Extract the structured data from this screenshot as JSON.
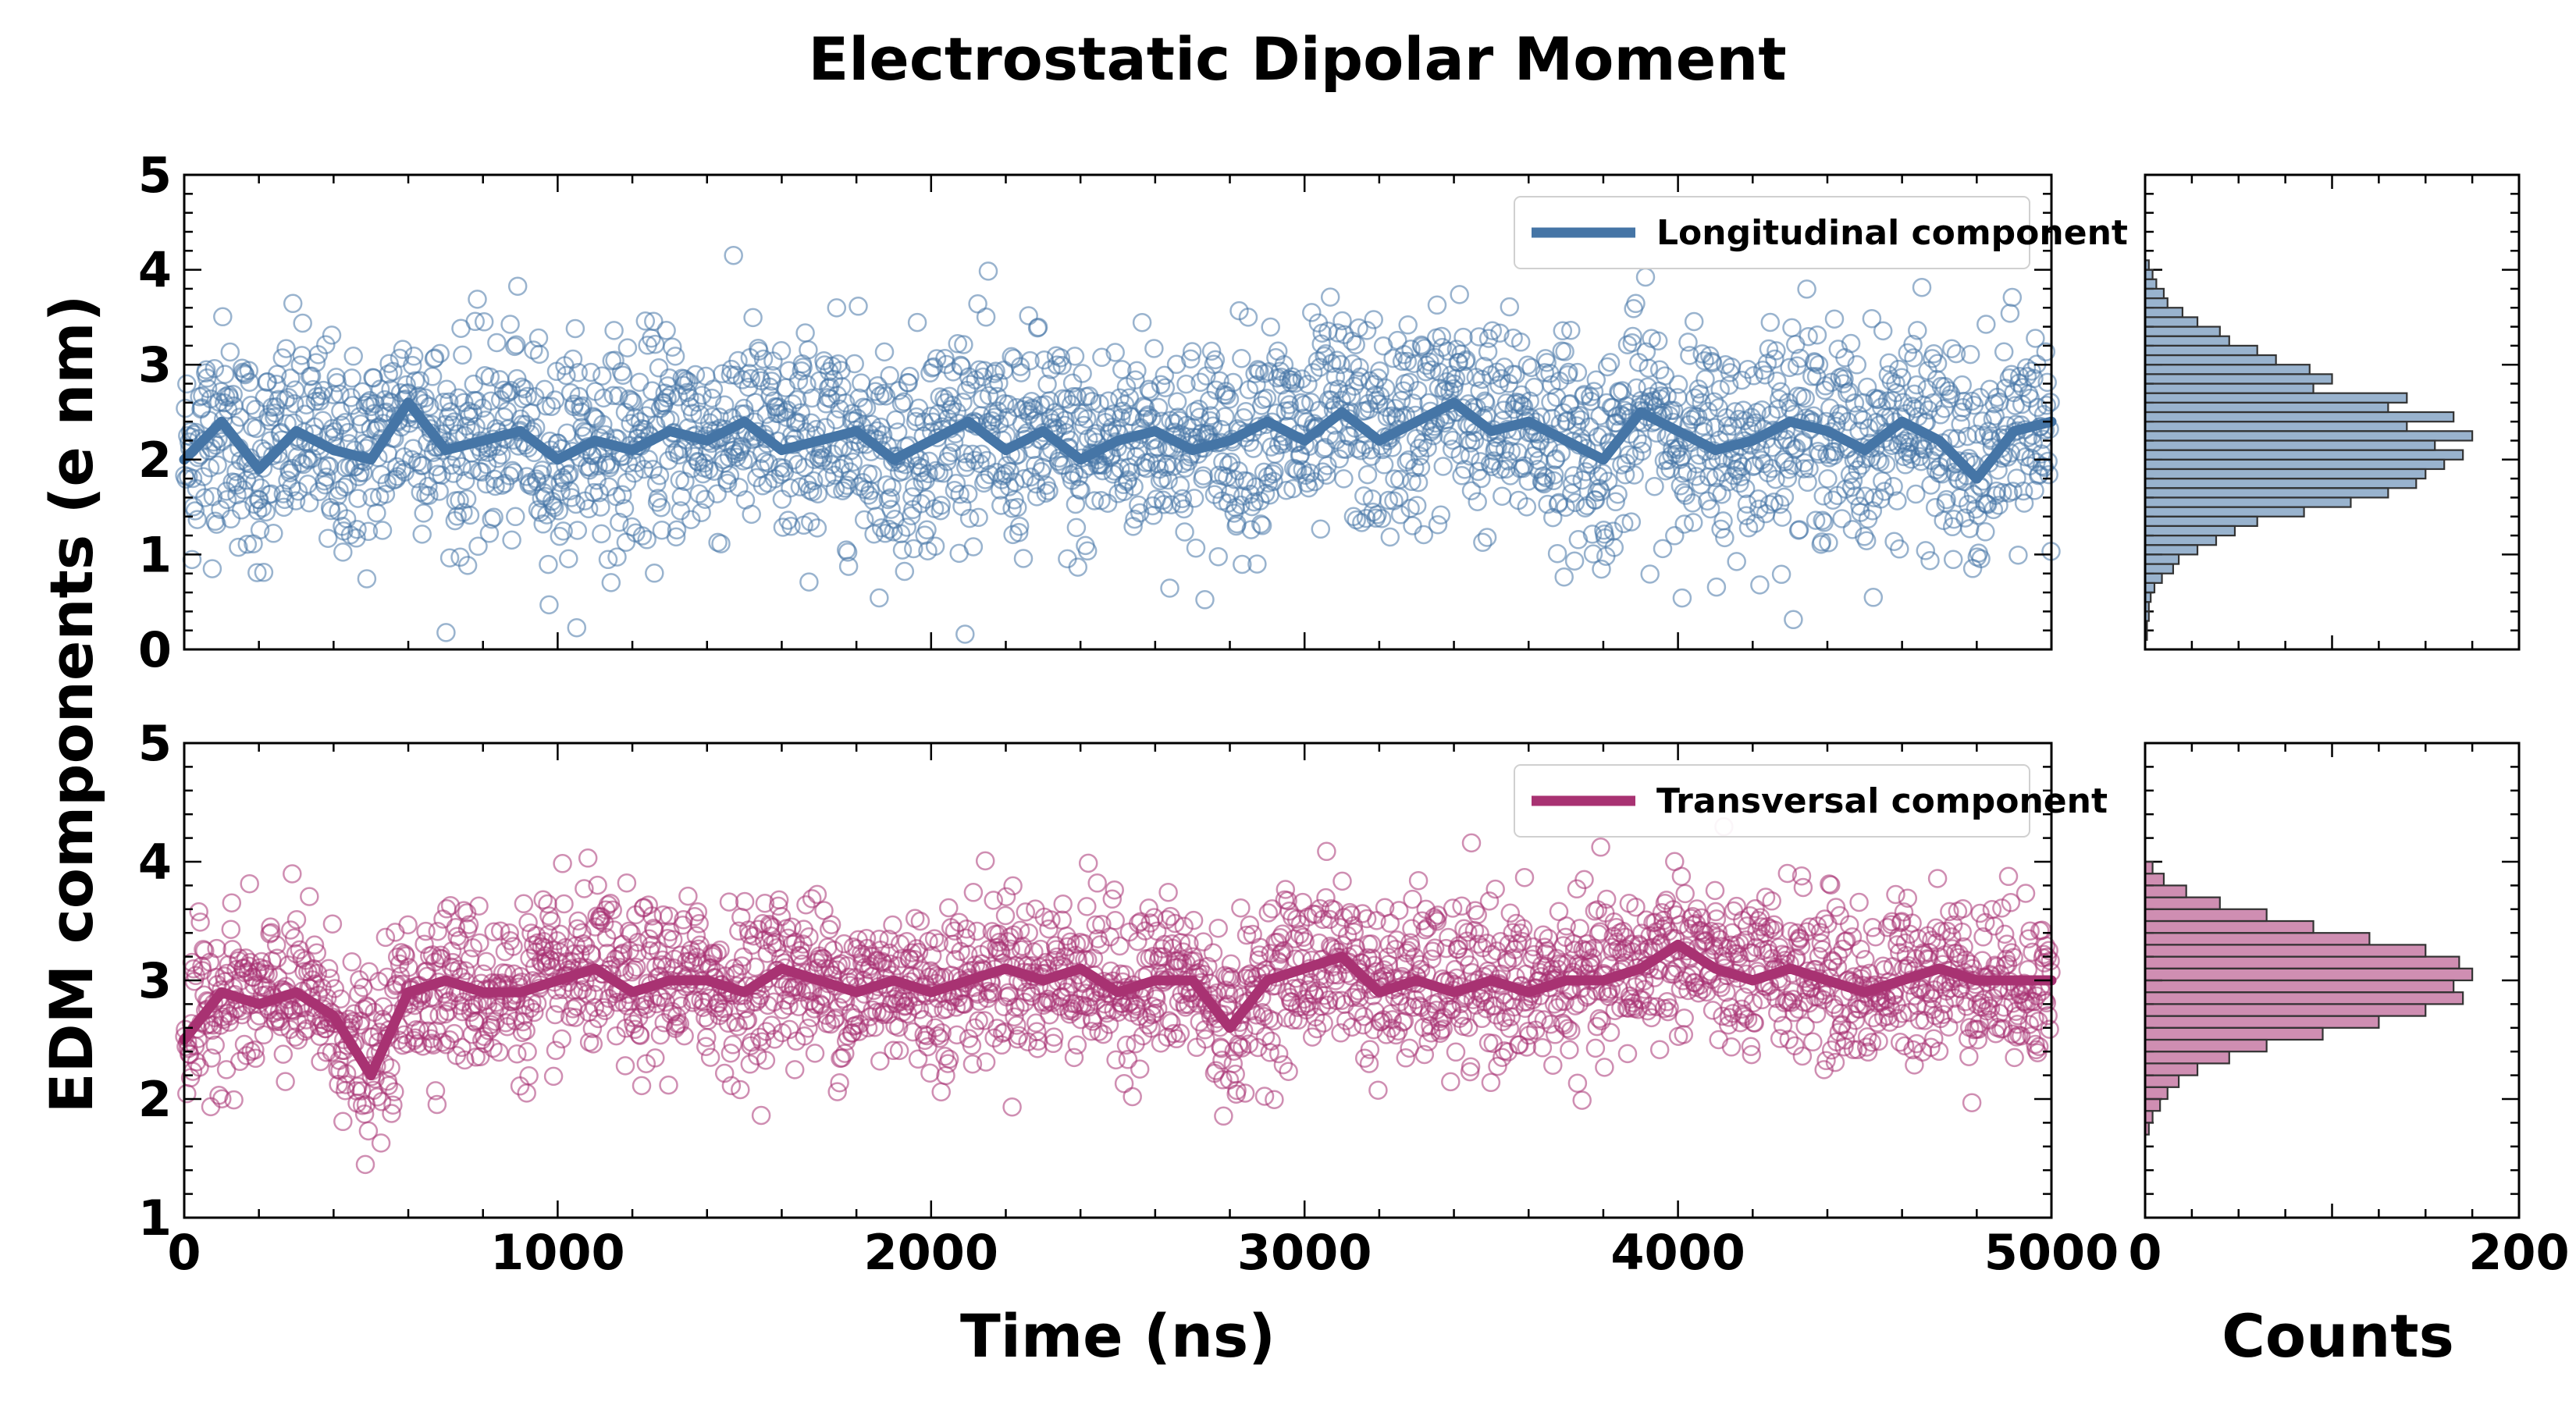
{
  "chart_data": {
    "title": "Electrostatic Dipolar Moment",
    "ylabel": "EDM components (e nm)",
    "xlabel": "Time (ns)",
    "hist_xlabel": "Counts",
    "panels": [
      {
        "type": "scatter",
        "legend": "Longitudinal component",
        "legend_position": "top-right",
        "color": "#4575a6",
        "xlim": [
          0,
          5000
        ],
        "ylim": [
          0,
          5
        ],
        "xticks": [
          0,
          1000,
          2000,
          3000,
          4000,
          5000
        ],
        "yticks": [
          0,
          1,
          2,
          3,
          4,
          5
        ],
        "scatter_summary": {
          "mean": 2.2,
          "std": 0.65,
          "n_points": 2500
        },
        "running_mean": {
          "x": [
            0,
            100,
            200,
            300,
            400,
            500,
            600,
            700,
            800,
            900,
            1000,
            1100,
            1200,
            1300,
            1400,
            1500,
            1600,
            1700,
            1800,
            1900,
            2000,
            2100,
            2200,
            2300,
            2400,
            2500,
            2600,
            2700,
            2800,
            2900,
            3000,
            3100,
            3200,
            3300,
            3400,
            3500,
            3600,
            3700,
            3800,
            3900,
            4000,
            4100,
            4200,
            4300,
            4400,
            4500,
            4600,
            4700,
            4800,
            4900,
            5000
          ],
          "y": [
            2.0,
            2.4,
            1.9,
            2.3,
            2.1,
            2.0,
            2.6,
            2.1,
            2.2,
            2.3,
            2.0,
            2.2,
            2.1,
            2.3,
            2.2,
            2.4,
            2.1,
            2.2,
            2.3,
            2.0,
            2.2,
            2.4,
            2.1,
            2.3,
            2.0,
            2.2,
            2.3,
            2.1,
            2.2,
            2.4,
            2.2,
            2.5,
            2.2,
            2.4,
            2.6,
            2.3,
            2.4,
            2.2,
            2.0,
            2.5,
            2.3,
            2.1,
            2.2,
            2.4,
            2.3,
            2.1,
            2.4,
            2.2,
            1.8,
            2.3,
            2.4
          ]
        },
        "histogram": {
          "xlim": [
            0,
            200
          ],
          "xticks": [
            0,
            200
          ],
          "bin_centers": [
            0.15,
            0.25,
            0.35,
            0.45,
            0.55,
            0.65,
            0.75,
            0.85,
            0.95,
            1.05,
            1.15,
            1.25,
            1.35,
            1.45,
            1.55,
            1.65,
            1.75,
            1.85,
            1.95,
            2.05,
            2.15,
            2.25,
            2.35,
            2.45,
            2.55,
            2.65,
            2.75,
            2.85,
            2.95,
            3.05,
            3.15,
            3.25,
            3.35,
            3.45,
            3.55,
            3.65,
            3.75,
            3.85,
            3.95,
            4.05
          ],
          "counts": [
            1,
            1,
            2,
            2,
            3,
            5,
            9,
            15,
            18,
            28,
            38,
            48,
            60,
            85,
            110,
            130,
            145,
            150,
            160,
            170,
            155,
            175,
            140,
            165,
            130,
            140,
            90,
            100,
            88,
            70,
            60,
            45,
            40,
            28,
            20,
            12,
            10,
            6,
            4,
            2
          ]
        }
      },
      {
        "type": "scatter",
        "legend": "Transversal component",
        "legend_position": "top-right",
        "color": "#a83272",
        "xlim": [
          0,
          5000
        ],
        "ylim": [
          1,
          5
        ],
        "xticks": [
          0,
          1000,
          2000,
          3000,
          4000,
          5000
        ],
        "yticks": [
          1,
          2,
          3,
          4,
          5
        ],
        "scatter_summary": {
          "mean": 2.95,
          "std": 0.4,
          "n_points": 2500
        },
        "running_mean": {
          "x": [
            0,
            100,
            200,
            300,
            400,
            500,
            600,
            700,
            800,
            900,
            1000,
            1100,
            1200,
            1300,
            1400,
            1500,
            1600,
            1700,
            1800,
            1900,
            2000,
            2100,
            2200,
            2300,
            2400,
            2500,
            2600,
            2700,
            2800,
            2900,
            3000,
            3100,
            3200,
            3300,
            3400,
            3500,
            3600,
            3700,
            3800,
            3900,
            4000,
            4100,
            4200,
            4300,
            4400,
            4500,
            4600,
            4700,
            4800,
            4900,
            5000
          ],
          "y": [
            2.5,
            2.9,
            2.8,
            2.9,
            2.7,
            2.2,
            2.9,
            3.0,
            2.9,
            2.9,
            3.0,
            3.1,
            2.9,
            3.0,
            3.0,
            2.9,
            3.1,
            3.0,
            2.9,
            3.0,
            2.9,
            3.0,
            3.1,
            3.0,
            3.1,
            2.9,
            3.0,
            3.0,
            2.6,
            3.0,
            3.1,
            3.2,
            2.9,
            3.0,
            2.9,
            3.0,
            2.9,
            3.0,
            3.0,
            3.1,
            3.3,
            3.1,
            3.0,
            3.1,
            3.0,
            2.9,
            3.0,
            3.1,
            3.0,
            3.0,
            3.0
          ]
        },
        "histogram": {
          "xlim": [
            0,
            200
          ],
          "xticks": [
            0,
            200
          ],
          "bin_centers": [
            1.75,
            1.85,
            1.95,
            2.05,
            2.15,
            2.25,
            2.35,
            2.45,
            2.55,
            2.65,
            2.75,
            2.85,
            2.95,
            3.05,
            3.15,
            3.25,
            3.35,
            3.45,
            3.55,
            3.65,
            3.75,
            3.85,
            3.95
          ],
          "counts": [
            2,
            4,
            8,
            12,
            18,
            28,
            45,
            65,
            95,
            125,
            150,
            170,
            165,
            175,
            168,
            150,
            120,
            90,
            65,
            40,
            22,
            10,
            4
          ]
        }
      }
    ]
  }
}
